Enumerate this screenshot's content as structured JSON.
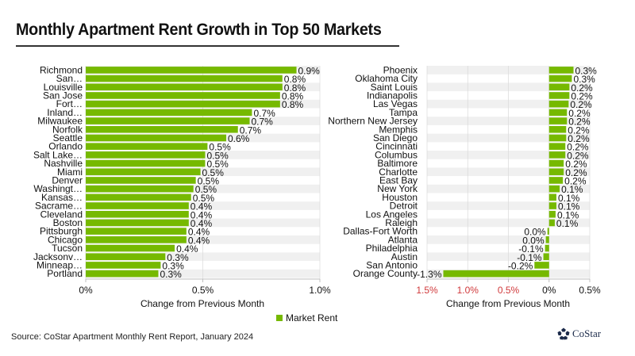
{
  "title": "Monthly Apartment Rent Growth in Top 50 Markets",
  "source": "Source: CoStar Apartment Monthly Rent Report, January 2024",
  "logo_text": "CoStar",
  "legend_label": "Market Rent",
  "colors": {
    "bar": "#76b900",
    "band": "#f0f0f0",
    "negative_tick": "#d0393b",
    "grid": "#d9d9d9"
  },
  "chart_data": [
    {
      "type": "bar",
      "orientation": "horizontal",
      "title": "",
      "xlabel": "Change from Previous Month",
      "xlim": [
        0,
        1.0
      ],
      "xticks": [
        0,
        0.5,
        1.0
      ],
      "xtick_labels": [
        "0%",
        "0.5%",
        "1.0%"
      ],
      "categories": [
        "Richmond",
        "San…",
        "Louisville",
        "San Jose",
        "Fort…",
        "Inland…",
        "Milwaukee",
        "Norfolk",
        "Seattle",
        "Orlando",
        "Salt Lake…",
        "Nashville",
        "Miami",
        "Denver",
        "Washingt…",
        "Kansas…",
        "Sacrame…",
        "Cleveland",
        "Boston",
        "Pittsburgh",
        "Chicago",
        "Tucson",
        "Jacksonv…",
        "Minneap…",
        "Portland"
      ],
      "values": [
        0.9,
        0.84,
        0.84,
        0.83,
        0.83,
        0.71,
        0.7,
        0.65,
        0.6,
        0.52,
        0.51,
        0.51,
        0.49,
        0.47,
        0.46,
        0.45,
        0.44,
        0.44,
        0.44,
        0.43,
        0.43,
        0.38,
        0.34,
        0.32,
        0.31
      ],
      "labels": [
        "0.9%",
        "0.8%",
        "0.8%",
        "0.8%",
        "0.8%",
        "0.7%",
        "0.7%",
        "0.7%",
        "0.6%",
        "0.5%",
        "0.5%",
        "0.5%",
        "0.5%",
        "0.5%",
        "0.5%",
        "0.5%",
        "0.4%",
        "0.4%",
        "0.4%",
        "0.4%",
        "0.4%",
        "0.4%",
        "0.3%",
        "0.3%",
        "0.3%"
      ],
      "legend": [
        "Market Rent"
      ]
    },
    {
      "type": "bar",
      "orientation": "horizontal",
      "title": "",
      "xlabel": "Change from Previous Month",
      "xlim": [
        -1.5,
        0.5
      ],
      "xticks": [
        -1.5,
        -1.0,
        -0.5,
        0,
        0.5
      ],
      "xtick_labels": [
        "1.5%",
        "1.0%",
        "0.5%",
        "0%",
        "0.5%"
      ],
      "categories": [
        "Phoenix",
        "Oklahoma City",
        "Saint Louis",
        "Indianapolis",
        "Las Vegas",
        "Tampa",
        "Northern New Jersey",
        "Memphis",
        "San Diego",
        "Cincinnati",
        "Columbus",
        "Baltimore",
        "Charlotte",
        "East Bay",
        "New York",
        "Houston",
        "Detroit",
        "Los Angeles",
        "Raleigh",
        "Dallas-Fort Worth",
        "Atlanta",
        "Philadelphia",
        "Austin",
        "San Antonio",
        "Orange County"
      ],
      "values": [
        0.3,
        0.28,
        0.25,
        0.25,
        0.24,
        0.22,
        0.22,
        0.21,
        0.21,
        0.2,
        0.2,
        0.18,
        0.18,
        0.17,
        0.13,
        0.09,
        0.09,
        0.08,
        0.07,
        -0.02,
        -0.04,
        -0.05,
        -0.07,
        -0.18,
        -1.3
      ],
      "labels": [
        "0.3%",
        "0.3%",
        "0.2%",
        "0.2%",
        "0.2%",
        "0.2%",
        "0.2%",
        "0.2%",
        "0.2%",
        "0.2%",
        "0.2%",
        "0.2%",
        "0.2%",
        "0.2%",
        "0.1%",
        "0.1%",
        "0.1%",
        "0.1%",
        "0.1%",
        "0.0%",
        "0.0%",
        "-0.1%",
        "-0.1%",
        "-0.2%",
        "-1.3%"
      ],
      "legend": [
        "Market Rent"
      ]
    }
  ]
}
